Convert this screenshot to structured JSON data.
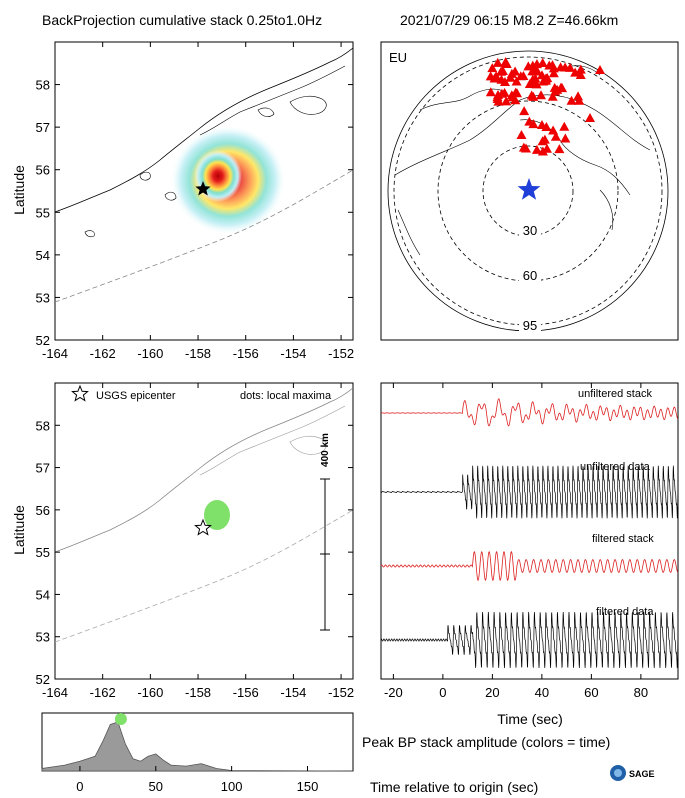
{
  "header": {
    "title": "BackProjection cumulative stack 0.25to1.0Hz",
    "event_info": "2021/07/29 06:15   M8.2  Z=46.66km"
  },
  "colors": {
    "heat_red": "#d7191c",
    "heat_orange": "#fd8d3c",
    "heat_yellow": "#ffff33",
    "heat_cyan": "#41b6c4",
    "station": "#ee0000",
    "epicenter_blue": "#1f3fd8",
    "green": "#7fe06a",
    "trace_red": "#dd2222",
    "trace_black": "#000000",
    "envelope_gray": "#9a9a9a"
  },
  "map_top": {
    "ylabel": "Latitude",
    "x_ticks": [
      "-164",
      "-162",
      "-160",
      "-158",
      "-156",
      "-154",
      "-152"
    ],
    "y_ticks": [
      "52",
      "53",
      "54",
      "55",
      "56",
      "57",
      "58"
    ],
    "xlim": [
      -164,
      -151.5
    ],
    "ylim": [
      52,
      59
    ],
    "epicenter": {
      "lon": -157.9,
      "lat": 55.45
    }
  },
  "map_bottom": {
    "ylabel": "Latitude",
    "legend_star": "USGS epicenter",
    "legend_dots": "dots: local maxima",
    "scale_label": "400 km",
    "x_ticks": [
      "-164",
      "-162",
      "-160",
      "-158",
      "-156",
      "-154",
      "-152"
    ],
    "y_ticks": [
      "52",
      "53",
      "54",
      "55",
      "56",
      "57",
      "58"
    ]
  },
  "globe": {
    "label": "EU",
    "rings": [
      "30",
      "60",
      "95"
    ]
  },
  "traces": {
    "labels": [
      "unfiltered stack",
      "unfiltered data",
      "filtered stack",
      "filtered data"
    ],
    "x_ticks": [
      "-20",
      "0",
      "20",
      "40",
      "60",
      "80"
    ],
    "xlabel": "Time (sec)",
    "xlim": [
      -25,
      95
    ]
  },
  "peak": {
    "title": "Peak BP stack amplitude (colors = time)",
    "x_ticks": [
      "0",
      "50",
      "100",
      "150"
    ],
    "xlabel": "Time relative to origin (sec)",
    "logo_text": "SAGE"
  },
  "chart_data": [
    {
      "type": "heatmap",
      "title": "BackProjection cumulative stack 0.25to1.0Hz",
      "ylabel": "Latitude",
      "xlim": [
        -164,
        -151.5
      ],
      "ylim": [
        52,
        59
      ],
      "peak": {
        "lon": -157.2,
        "lat": 55.7
      }
    },
    {
      "type": "scatter",
      "ylabel": "Latitude",
      "series": [
        {
          "name": "USGS epicenter",
          "x": [
            -157.9
          ],
          "y": [
            55.45
          ]
        },
        {
          "name": "dots: local maxima",
          "x": [
            -157.4,
            -157.3
          ],
          "y": [
            55.8,
            55.9
          ]
        }
      ]
    },
    {
      "type": "line",
      "xlabel": "Time (sec)",
      "xlim": [
        -25,
        95
      ],
      "series": [
        {
          "name": "unfiltered stack"
        },
        {
          "name": "unfiltered data"
        },
        {
          "name": "filtered stack"
        },
        {
          "name": "filtered data"
        }
      ]
    },
    {
      "type": "area",
      "title": "Peak BP stack amplitude (colors = time)",
      "xlabel": "Time relative to origin (sec)",
      "xlim": [
        -25,
        180
      ],
      "x": [
        -25,
        -10,
        0,
        10,
        15,
        20,
        25,
        30,
        35,
        40,
        45,
        50,
        55,
        60,
        70,
        80,
        90,
        100,
        180
      ],
      "y": [
        0.05,
        0.12,
        0.2,
        0.3,
        0.6,
        0.95,
        1.0,
        0.55,
        0.25,
        0.2,
        0.3,
        0.35,
        0.22,
        0.12,
        0.1,
        0.15,
        0.05,
        0.01,
        0.0
      ],
      "peak_marker": {
        "x": 27,
        "y": 1.0
      }
    }
  ]
}
